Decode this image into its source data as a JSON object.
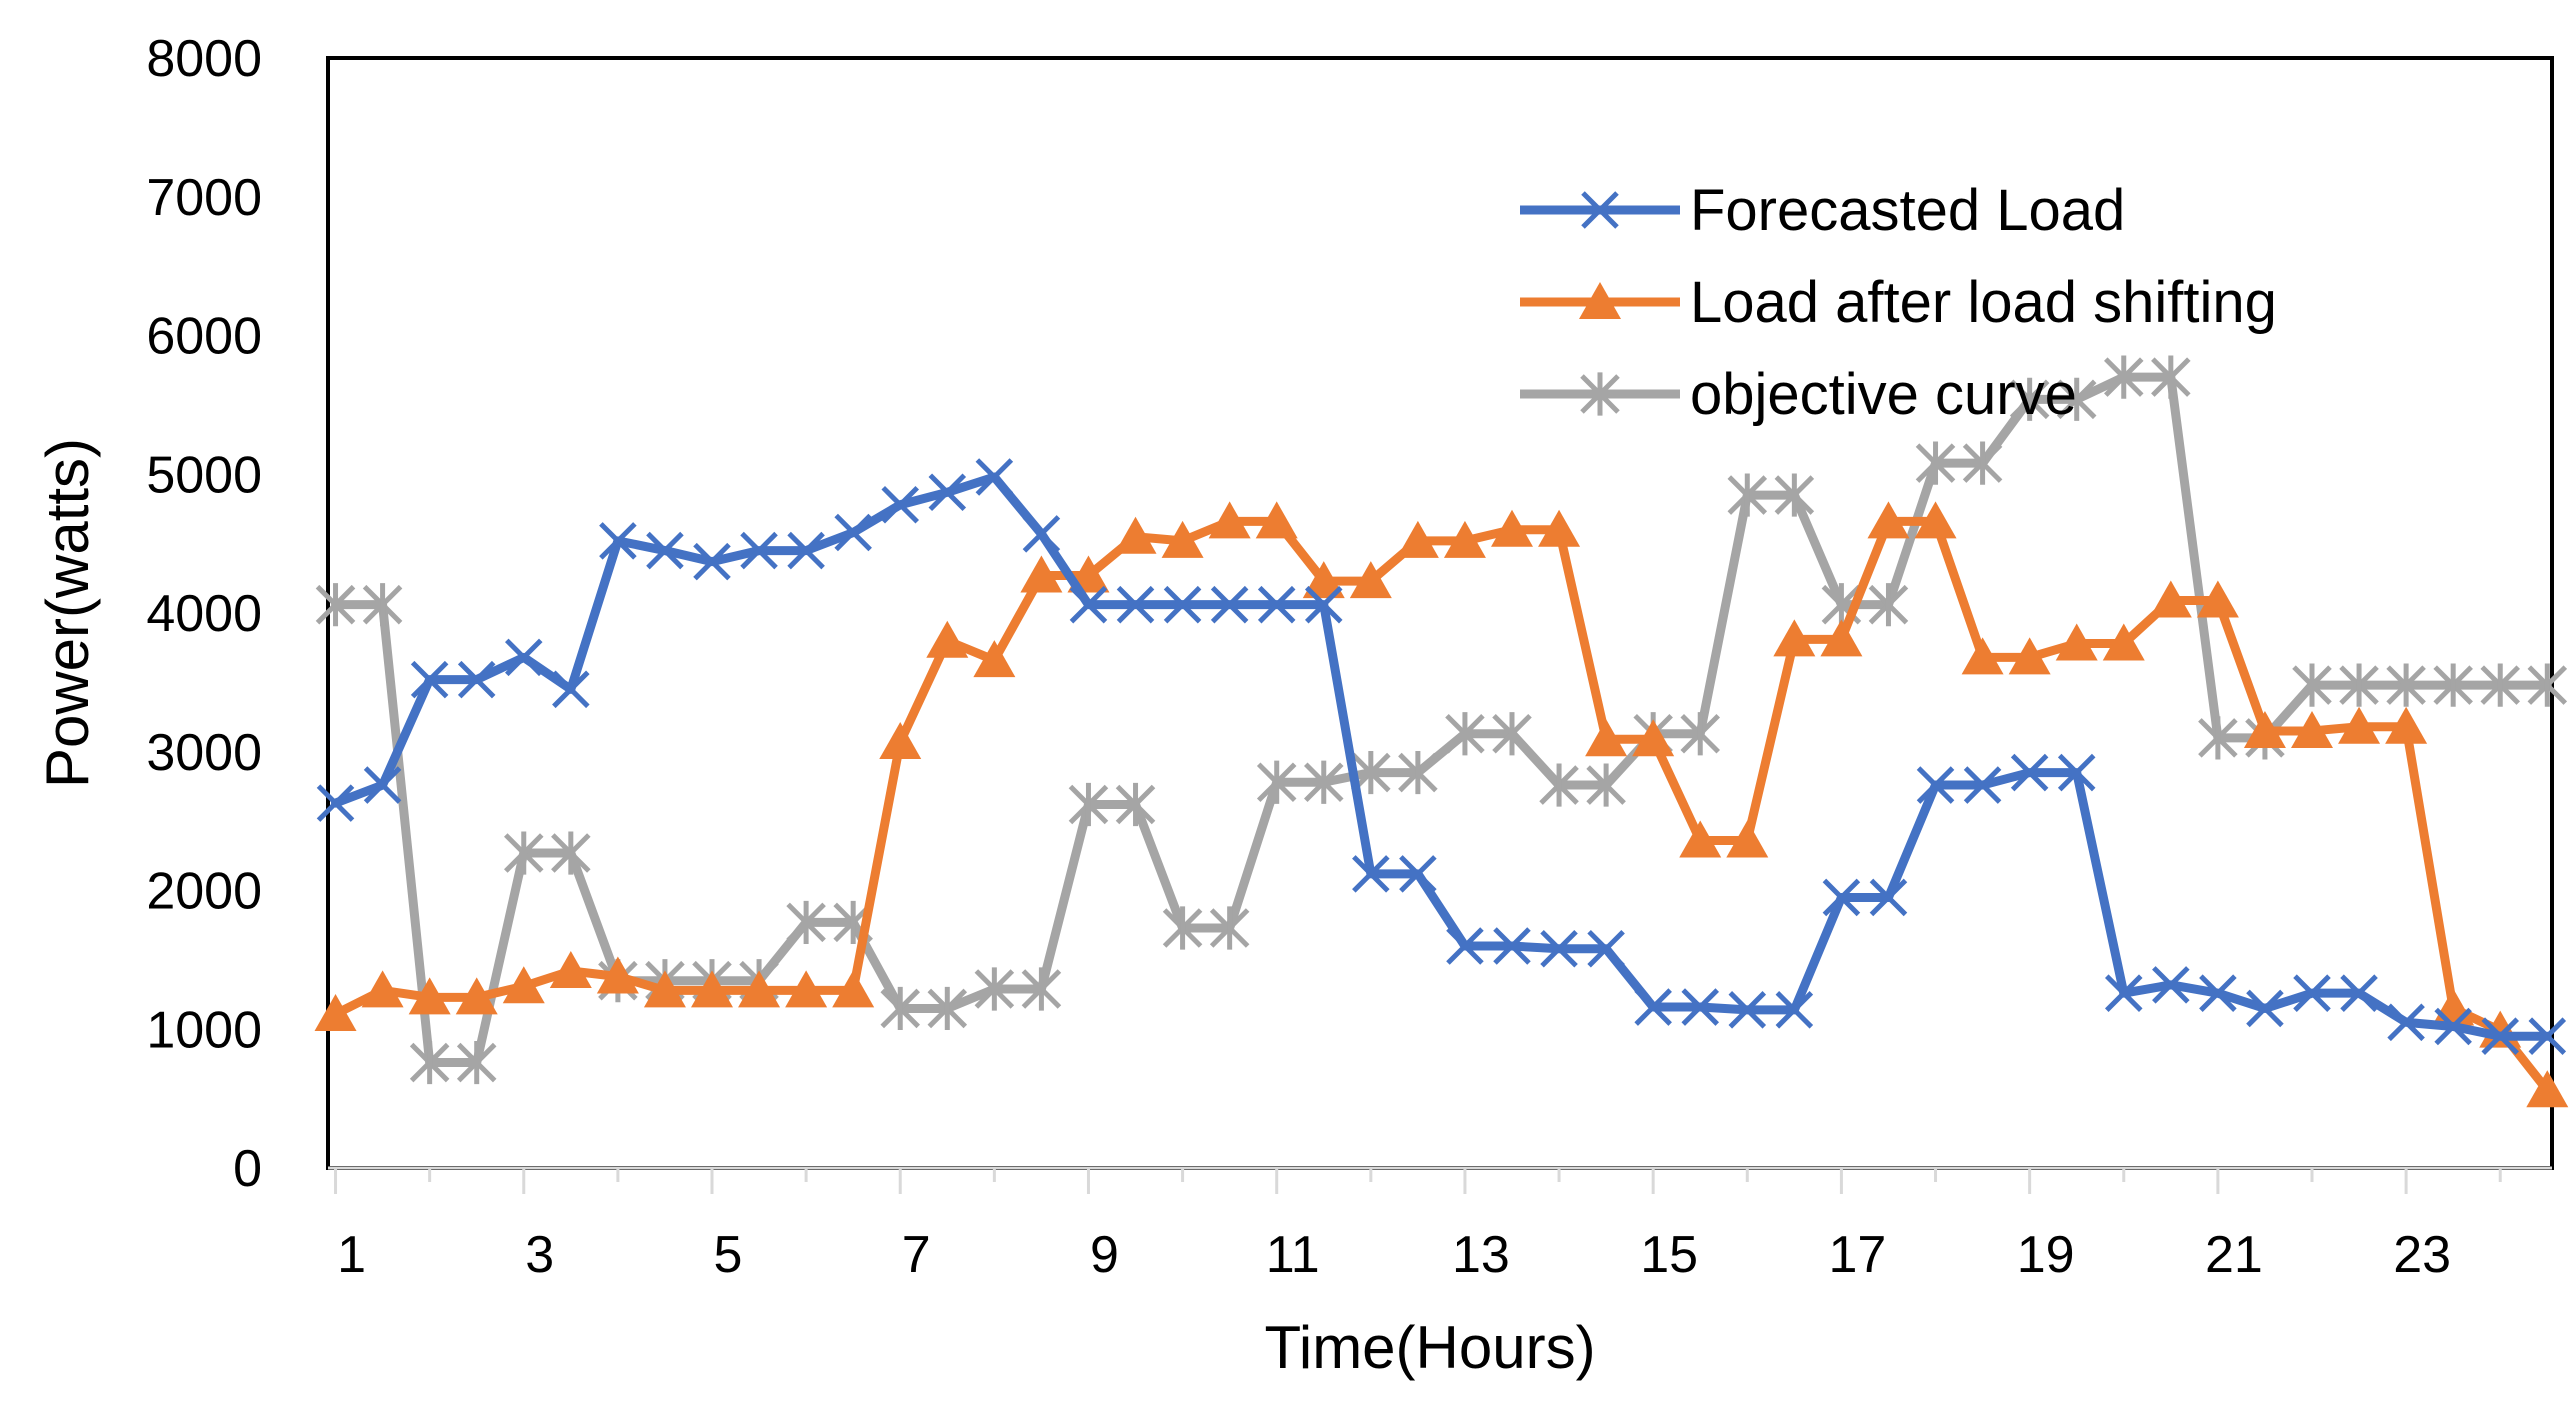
{
  "chart_data": {
    "type": "line",
    "title": "",
    "xlabel": "Time(Hours)",
    "ylabel": "Power(watts)",
    "ylim": [
      0,
      8000
    ],
    "xlim": [
      1,
      24.5
    ],
    "y_ticks": [
      0,
      1000,
      2000,
      3000,
      4000,
      5000,
      6000,
      7000,
      8000
    ],
    "x_tick_labels": [
      "1",
      "3",
      "5",
      "7",
      "9",
      "11",
      "13",
      "15",
      "17",
      "19",
      "21",
      "23"
    ],
    "x_tick_values": [
      1,
      3,
      5,
      7,
      9,
      11,
      13,
      15,
      17,
      19,
      21,
      23
    ],
    "x_minor_ticks": [
      1,
      2,
      3,
      4,
      5,
      6,
      7,
      8,
      9,
      10,
      11,
      12,
      13,
      14,
      15,
      16,
      17,
      18,
      19,
      20,
      21,
      22,
      23,
      24
    ],
    "legend_position": "top-right",
    "x": [
      1,
      1.5,
      2,
      2.5,
      3,
      3.5,
      4,
      4.5,
      5,
      5.5,
      6,
      6.5,
      7,
      7.5,
      8,
      8.5,
      9,
      9.5,
      10,
      10.5,
      11,
      11.5,
      12,
      12.5,
      13,
      13.5,
      14,
      14.5,
      15,
      15.5,
      16,
      16.5,
      17,
      17.5,
      18,
      18.5,
      19,
      19.5,
      20,
      20.5,
      21,
      21.5,
      22,
      22.5,
      23,
      23.5,
      24,
      24.5
    ],
    "series": [
      {
        "name": "Forecasted Load",
        "color": "#4472C4",
        "marker": "x",
        "values": [
          2630,
          2760,
          3520,
          3520,
          3680,
          3450,
          4520,
          4450,
          4370,
          4450,
          4450,
          4580,
          4780,
          4870,
          4980,
          4570,
          4060,
          4060,
          4060,
          4060,
          4060,
          4060,
          2120,
          2120,
          1600,
          1600,
          1580,
          1580,
          1160,
          1160,
          1140,
          1140,
          1950,
          1950,
          2760,
          2760,
          2850,
          2850,
          1260,
          1320,
          1260,
          1150,
          1260,
          1260,
          1050,
          1020,
          950,
          950
        ]
      },
      {
        "name": "Load after load shifting",
        "color": "#ED7D31",
        "marker": "triangle",
        "values": [
          1110,
          1280,
          1230,
          1230,
          1310,
          1420,
          1380,
          1280,
          1280,
          1280,
          1280,
          1280,
          3070,
          3800,
          3660,
          4270,
          4270,
          4550,
          4520,
          4660,
          4660,
          4230,
          4230,
          4520,
          4520,
          4600,
          4600,
          3090,
          3090,
          2360,
          2360,
          3810,
          3810,
          4660,
          4660,
          3680,
          3680,
          3780,
          3780,
          4090,
          4090,
          3150,
          3150,
          3180,
          3180,
          1150,
          990,
          560
        ]
      },
      {
        "name": "objective curve",
        "color": "#A5A5A5",
        "marker": "star",
        "values": [
          4060,
          4060,
          760,
          760,
          2270,
          2270,
          1350,
          1350,
          1350,
          1350,
          1770,
          1770,
          1150,
          1150,
          1290,
          1290,
          2620,
          2620,
          1730,
          1730,
          2780,
          2780,
          2850,
          2850,
          3130,
          3130,
          2760,
          2760,
          3130,
          3130,
          4850,
          4850,
          4060,
          4060,
          5080,
          5080,
          5540,
          5540,
          5700,
          5700,
          3100,
          3100,
          3480,
          3480,
          3480,
          3480,
          3480,
          3480
        ]
      }
    ]
  }
}
